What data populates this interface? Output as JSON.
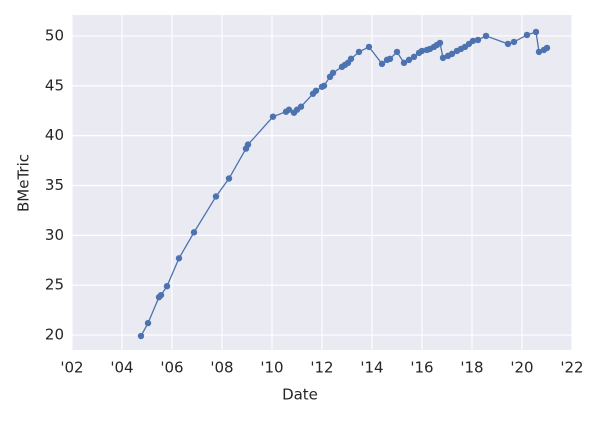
{
  "chart_data": {
    "type": "line",
    "x_label": "Date",
    "y_label": "BMeTric",
    "series": [
      {
        "color": "#4c72b0",
        "x": [
          2004.76,
          2005.04,
          2005.48,
          2005.56,
          2005.8,
          2006.28,
          2006.88,
          2007.76,
          2008.28,
          2008.96,
          2009.04,
          2010.04,
          2010.56,
          2010.68,
          2010.88,
          2011.0,
          2011.16,
          2011.64,
          2011.76,
          2012.0,
          2012.08,
          2012.32,
          2012.44,
          2012.8,
          2012.92,
          2013.04,
          2013.16,
          2013.48,
          2013.88,
          2014.4,
          2014.6,
          2014.72,
          2015.0,
          2015.28,
          2015.48,
          2015.68,
          2015.88,
          2016.0,
          2016.2,
          2016.32,
          2016.48,
          2016.6,
          2016.72,
          2016.84,
          2017.04,
          2017.2,
          2017.4,
          2017.56,
          2017.72,
          2017.88,
          2018.04,
          2018.24,
          2018.56,
          2019.44,
          2019.68,
          2020.2,
          2020.56,
          2020.68,
          2020.88,
          2021.0
        ],
        "values": [
          19.9,
          21.2,
          23.8,
          24.0,
          24.9,
          27.7,
          30.3,
          33.9,
          35.7,
          38.7,
          39.1,
          41.9,
          42.4,
          42.6,
          42.3,
          42.6,
          42.9,
          44.2,
          44.5,
          44.9,
          45.0,
          45.9,
          46.3,
          46.9,
          47.1,
          47.3,
          47.7,
          48.4,
          48.9,
          47.2,
          47.6,
          47.7,
          48.4,
          47.3,
          47.6,
          47.9,
          48.3,
          48.5,
          48.6,
          48.7,
          48.9,
          49.1,
          49.3,
          47.8,
          48.0,
          48.2,
          48.5,
          48.7,
          48.9,
          49.2,
          49.5,
          49.6,
          50.0,
          49.2,
          49.4,
          50.1,
          50.4,
          48.4,
          48.6,
          48.8
        ]
      }
    ],
    "xlim": [
      2002,
      2022
    ],
    "xticks": [
      {
        "value": 2002,
        "label": "'02"
      },
      {
        "value": 2004,
        "label": "'04"
      },
      {
        "value": 2006,
        "label": "'06"
      },
      {
        "value": 2008,
        "label": "'08"
      },
      {
        "value": 2010,
        "label": "'10"
      },
      {
        "value": 2012,
        "label": "'12"
      },
      {
        "value": 2014,
        "label": "'14"
      },
      {
        "value": 2016,
        "label": "'16"
      },
      {
        "value": 2018,
        "label": "'18"
      },
      {
        "value": 2020,
        "label": "'20"
      },
      {
        "value": 2022,
        "label": "'22"
      }
    ],
    "ylim": [
      18.5,
      52.1
    ],
    "yticks": [
      20,
      25,
      30,
      35,
      40,
      45,
      50
    ],
    "grid": true
  }
}
